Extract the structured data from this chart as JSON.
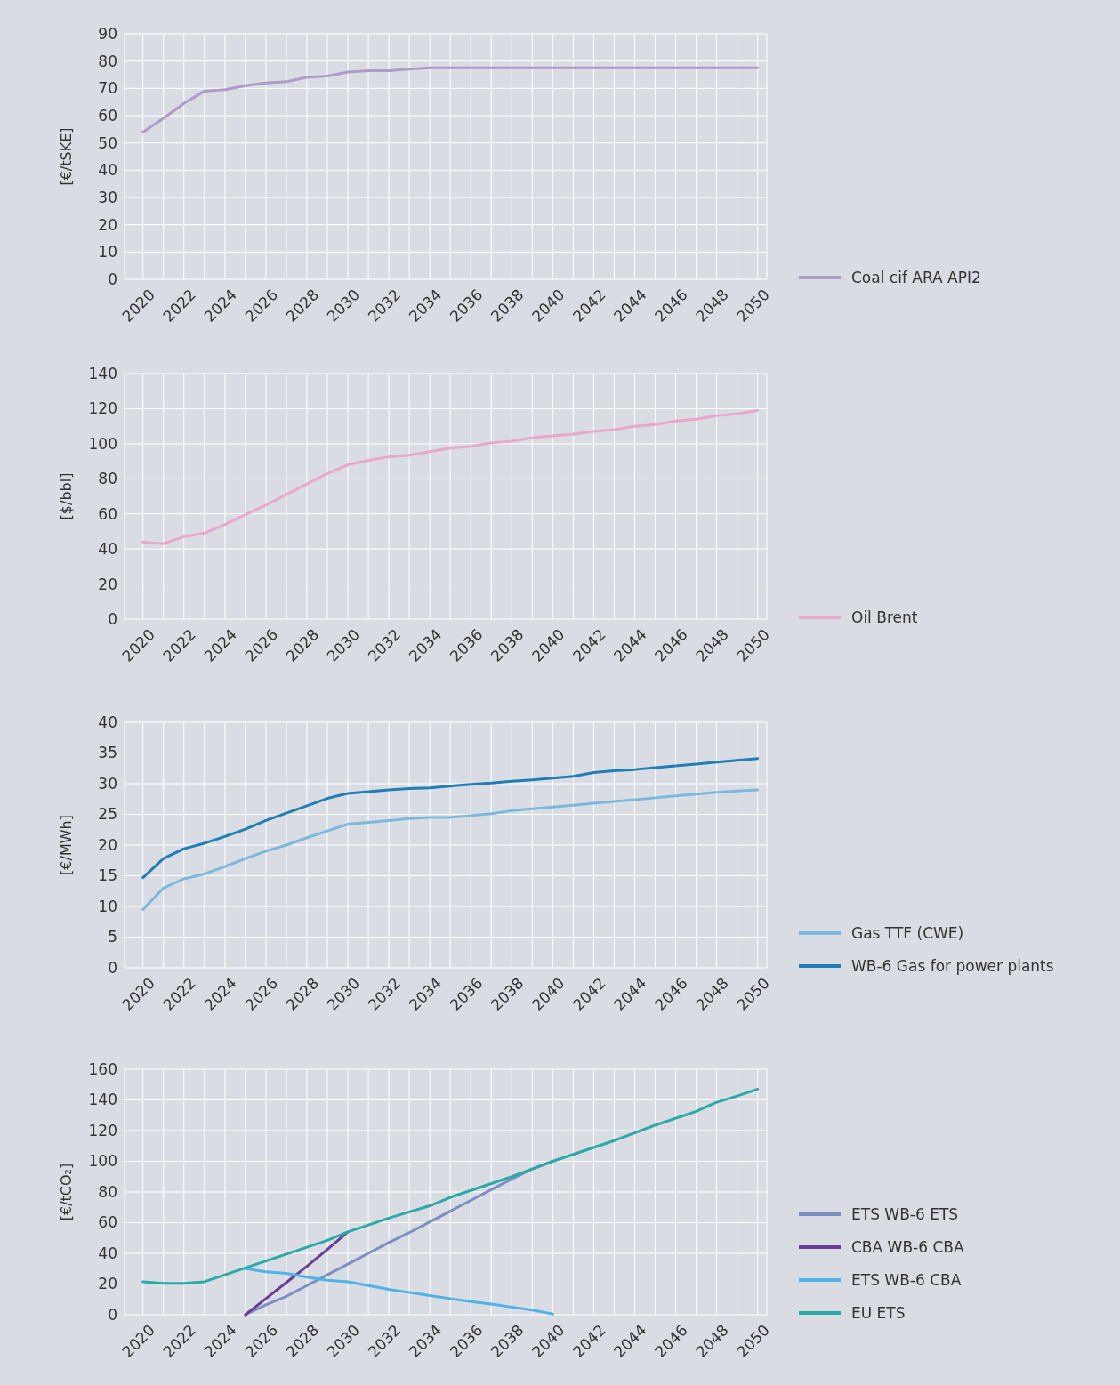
{
  "chart_data": [
    {
      "type": "line",
      "ylabel": "[€/tSKE]",
      "x": [
        2020,
        2021,
        2022,
        2023,
        2024,
        2025,
        2026,
        2027,
        2028,
        2029,
        2030,
        2031,
        2032,
        2033,
        2034,
        2035,
        2036,
        2037,
        2038,
        2039,
        2040,
        2041,
        2042,
        2043,
        2044,
        2045,
        2046,
        2047,
        2048,
        2049,
        2050
      ],
      "xlim": [
        2019.1,
        2050.45
      ],
      "xticks": [
        2020,
        {
          "value": 2021,
          "label": null
        },
        2022,
        {
          "value": 2023,
          "label": null
        },
        2024,
        {
          "value": 2025,
          "label": null
        },
        2026,
        {
          "value": 2027,
          "label": null
        },
        2028,
        {
          "value": 2029,
          "label": null
        },
        2030,
        {
          "value": 2031,
          "label": null
        },
        2032,
        {
          "value": 2033,
          "label": null
        },
        2034,
        {
          "value": 2035,
          "label": null
        },
        2036,
        {
          "value": 2037,
          "label": null
        },
        2038,
        {
          "value": 2039,
          "label": null
        },
        2040,
        {
          "value": 2041,
          "label": null
        },
        2042,
        {
          "value": 2043,
          "label": null
        },
        2044,
        {
          "value": 2045,
          "label": null
        },
        2046,
        {
          "value": 2047,
          "label": null
        },
        2048,
        {
          "value": 2049,
          "label": null
        },
        2050
      ],
      "ylim": [
        0,
        90
      ],
      "yticks": [
        0,
        10,
        20,
        30,
        40,
        50,
        60,
        70,
        80,
        90
      ],
      "grid": true,
      "legend": "right",
      "series": [
        {
          "name": "Coal cif ARA API2",
          "color": "#b09ac8",
          "values": [
            54,
            59,
            64.5,
            69,
            69.5,
            71,
            72,
            72.5,
            74,
            74.5,
            76,
            76.5,
            76.5,
            77,
            77.5,
            77.5,
            77.5,
            77.5,
            77.5,
            77.5,
            77.5,
            77.5,
            77.5,
            77.5,
            77.5,
            77.5,
            77.5,
            77.5,
            77.5,
            77.5,
            77.5
          ]
        }
      ]
    },
    {
      "type": "line",
      "ylabel": "[$/bbl]",
      "x": [
        2020,
        2021,
        2022,
        2023,
        2024,
        2025,
        2026,
        2027,
        2028,
        2029,
        2030,
        2031,
        2032,
        2033,
        2034,
        2035,
        2036,
        2037,
        2038,
        2039,
        2040,
        2041,
        2042,
        2043,
        2044,
        2045,
        2046,
        2047,
        2048,
        2049,
        2050
      ],
      "xlim": [
        2019.1,
        2050.45
      ],
      "xticks": [
        2020,
        {
          "value": 2021,
          "label": null
        },
        2022,
        {
          "value": 2023,
          "label": null
        },
        2024,
        {
          "value": 2025,
          "label": null
        },
        2026,
        {
          "value": 2027,
          "label": null
        },
        2028,
        {
          "value": 2029,
          "label": null
        },
        2030,
        {
          "value": 2031,
          "label": null
        },
        2032,
        {
          "value": 2033,
          "label": null
        },
        2034,
        {
          "value": 2035,
          "label": null
        },
        2036,
        {
          "value": 2037,
          "label": null
        },
        2038,
        {
          "value": 2039,
          "label": null
        },
        2040,
        {
          "value": 2041,
          "label": null
        },
        2042,
        {
          "value": 2043,
          "label": null
        },
        2044,
        {
          "value": 2045,
          "label": null
        },
        2046,
        {
          "value": 2047,
          "label": null
        },
        2048,
        {
          "value": 2049,
          "label": null
        },
        2050
      ],
      "ylim": [
        0,
        140
      ],
      "yticks": [
        0,
        20,
        40,
        60,
        80,
        100,
        120,
        140
      ],
      "grid": true,
      "legend": "right",
      "series": [
        {
          "name": "Oil Brent",
          "color": "#e8a8cc",
          "values": [
            44,
            43,
            47,
            49,
            54,
            59.5,
            65,
            71,
            77,
            83,
            88,
            90.5,
            92.5,
            93.5,
            95.5,
            97.5,
            98.5,
            100.5,
            101.5,
            103.5,
            104.5,
            105.5,
            107,
            108,
            110,
            111,
            113,
            114,
            116,
            117,
            119
          ]
        }
      ]
    },
    {
      "type": "line",
      "ylabel": "[€/MWh]",
      "x": [
        2020,
        2021,
        2022,
        2023,
        2024,
        2025,
        2026,
        2027,
        2028,
        2029,
        2030,
        2031,
        2032,
        2033,
        2034,
        2035,
        2036,
        2037,
        2038,
        2039,
        2040,
        2041,
        2042,
        2043,
        2044,
        2045,
        2046,
        2047,
        2048,
        2049,
        2050
      ],
      "xlim": [
        2019.1,
        2050.45
      ],
      "xticks": [
        2020,
        {
          "value": 2021,
          "label": null
        },
        2022,
        {
          "value": 2023,
          "label": null
        },
        2024,
        {
          "value": 2025,
          "label": null
        },
        2026,
        {
          "value": 2027,
          "label": null
        },
        2028,
        {
          "value": 2029,
          "label": null
        },
        2030,
        {
          "value": 2031,
          "label": null
        },
        2032,
        {
          "value": 2033,
          "label": null
        },
        2034,
        {
          "value": 2035,
          "label": null
        },
        2036,
        {
          "value": 2037,
          "label": null
        },
        2038,
        {
          "value": 2039,
          "label": null
        },
        2040,
        {
          "value": 2041,
          "label": null
        },
        2042,
        {
          "value": 2043,
          "label": null
        },
        2044,
        {
          "value": 2045,
          "label": null
        },
        2046,
        {
          "value": 2047,
          "label": null
        },
        2048,
        {
          "value": 2049,
          "label": null
        },
        2050
      ],
      "ylim": [
        0,
        40
      ],
      "yticks": [
        0,
        5,
        10,
        15,
        20,
        25,
        30,
        35,
        40
      ],
      "grid": true,
      "legend": "right",
      "series": [
        {
          "name": "Gas TTF (CWE)",
          "color": "#7bb8de",
          "values": [
            9.5,
            13,
            14.5,
            15.3,
            16.5,
            17.8,
            19,
            20,
            21.2,
            22.3,
            23.4,
            23.7,
            24,
            24.3,
            24.5,
            24.5,
            24.8,
            25.1,
            25.6,
            25.9,
            26.2,
            26.5,
            26.8,
            27.1,
            27.4,
            27.7,
            28,
            28.3,
            28.6,
            28.8,
            29
          ]
        },
        {
          "name": "WB-6 Gas for power plants",
          "color": "#1f7fb4",
          "values": [
            14.7,
            17.8,
            19.4,
            20.3,
            21.4,
            22.6,
            24,
            25.2,
            26.4,
            27.6,
            28.4,
            28.7,
            29,
            29.2,
            29.3,
            29.6,
            29.9,
            30.1,
            30.4,
            30.6,
            30.9,
            31.2,
            31.8,
            32.1,
            32.3,
            32.6,
            32.9,
            33.2,
            33.5,
            33.8,
            34.1
          ]
        }
      ]
    },
    {
      "type": "line",
      "ylabel": "[€/tCO₂]",
      "x": [
        2020,
        2021,
        2022,
        2023,
        2024,
        2025,
        2026,
        2027,
        2028,
        2029,
        2030,
        2031,
        2032,
        2033,
        2034,
        2035,
        2036,
        2037,
        2038,
        2039,
        2040,
        2041,
        2042,
        2043,
        2044,
        2045,
        2046,
        2047,
        2048,
        2049,
        2050
      ],
      "xlim": [
        2019.1,
        2050.45
      ],
      "xticks": [
        2020,
        {
          "value": 2021,
          "label": null
        },
        2022,
        {
          "value": 2023,
          "label": null
        },
        2024,
        {
          "value": 2025,
          "label": null
        },
        2026,
        {
          "value": 2027,
          "label": null
        },
        2028,
        {
          "value": 2029,
          "label": null
        },
        2030,
        {
          "value": 2031,
          "label": null
        },
        2032,
        {
          "value": 2033,
          "label": null
        },
        2034,
        {
          "value": 2035,
          "label": null
        },
        2036,
        {
          "value": 2037,
          "label": null
        },
        2038,
        {
          "value": 2039,
          "label": null
        },
        2040,
        {
          "value": 2041,
          "label": null
        },
        2042,
        {
          "value": 2043,
          "label": null
        },
        2044,
        {
          "value": 2045,
          "label": null
        },
        2046,
        {
          "value": 2047,
          "label": null
        },
        2048,
        {
          "value": 2049,
          "label": null
        },
        2050
      ],
      "ylim": [
        0,
        160
      ],
      "yticks": [
        0,
        20,
        40,
        60,
        80,
        100,
        120,
        140,
        160
      ],
      "grid": true,
      "legend": "right",
      "series": [
        {
          "name": "ETS WB-6 ETS",
          "color": "#7b8fc4",
          "values": [
            null,
            null,
            null,
            null,
            null,
            0,
            6.5,
            12,
            19,
            26,
            33,
            40,
            47,
            53.5,
            60.5,
            67.5,
            74.5,
            81.5,
            88.5,
            95,
            100,
            null,
            null,
            null,
            null,
            null,
            null,
            null,
            null,
            null,
            null
          ]
        },
        {
          "name": "CBA WB-6 CBA",
          "color": "#6a3d9a",
          "values": [
            null,
            null,
            null,
            null,
            null,
            0,
            10.5,
            21,
            31.5,
            42.5,
            54,
            null,
            null,
            null,
            null,
            null,
            null,
            null,
            null,
            null,
            null,
            null,
            null,
            null,
            null,
            null,
            null,
            null,
            null,
            null,
            null
          ]
        },
        {
          "name": "ETS WB-6 CBA",
          "color": "#4fb3e8",
          "values": [
            null,
            null,
            null,
            null,
            null,
            30,
            28,
            27,
            24.5,
            22.5,
            21.5,
            19,
            16.5,
            14.5,
            12.5,
            10.5,
            8.5,
            7,
            5,
            3,
            0.5,
            null,
            null,
            null,
            null,
            null,
            null,
            null,
            null,
            null,
            null
          ]
        },
        {
          "name": "EU ETS",
          "color": "#2aa9a9",
          "values": [
            21.5,
            20.5,
            20.5,
            21.5,
            26,
            30.5,
            35,
            39.5,
            44,
            48.5,
            54,
            58.5,
            63,
            67,
            71,
            76.5,
            81,
            85.5,
            90,
            95,
            100,
            104.5,
            109,
            113.5,
            118.5,
            123.5,
            128,
            132.5,
            138.5,
            142.5,
            147
          ]
        }
      ]
    }
  ]
}
